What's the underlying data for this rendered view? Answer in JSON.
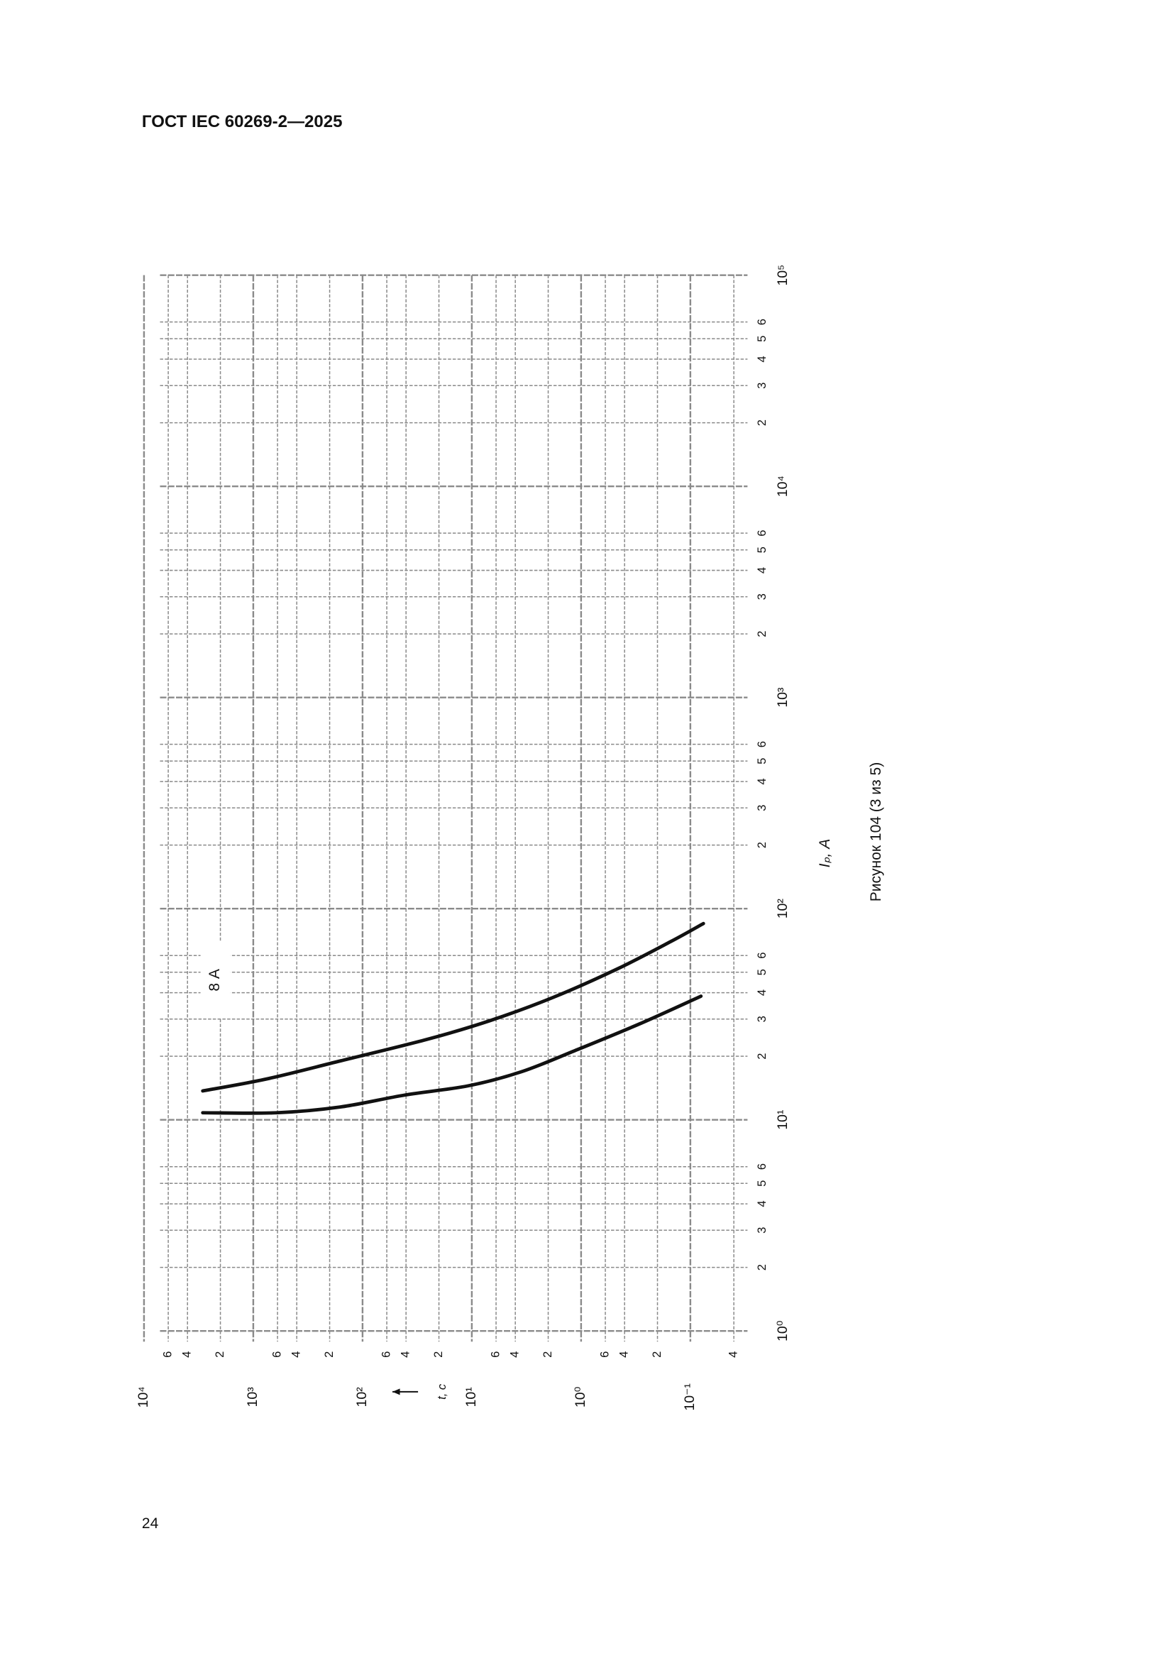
{
  "header": {
    "title": "ГОСТ IEC 60269-2—2025"
  },
  "page_number": "24",
  "caption": "Рисунок 104 (3 из 5)",
  "chart_data": {
    "type": "line",
    "x_label": "Iₚ, А",
    "y_label": "t, с",
    "annotation": "8 А",
    "log_x": true,
    "log_y": true,
    "grid": true,
    "xlim": [
      1,
      100000
    ],
    "ylim": [
      0.03,
      10000
    ],
    "xticks": [
      {
        "value": 1,
        "label": "10⁰"
      },
      2,
      3,
      4,
      5,
      6,
      {
        "value": 10,
        "label": "10¹"
      },
      {
        "value": 20,
        "label": "2"
      },
      {
        "value": 30,
        "label": "3"
      },
      {
        "value": 40,
        "label": "4"
      },
      {
        "value": 50,
        "label": "5"
      },
      {
        "value": 60,
        "label": "6"
      },
      {
        "value": 100,
        "label": "10²"
      },
      {
        "value": 200,
        "label": "2"
      },
      {
        "value": 300,
        "label": "3"
      },
      {
        "value": 400,
        "label": "4"
      },
      {
        "value": 500,
        "label": "5"
      },
      {
        "value": 600,
        "label": "6"
      },
      {
        "value": 1000,
        "label": "10³"
      },
      {
        "value": 2000,
        "label": "2"
      },
      {
        "value": 3000,
        "label": "3"
      },
      {
        "value": 4000,
        "label": "4"
      },
      {
        "value": 5000,
        "label": "5"
      },
      {
        "value": 6000,
        "label": "6"
      },
      {
        "value": 10000,
        "label": "10⁴"
      },
      {
        "value": 20000,
        "label": "2"
      },
      {
        "value": 30000,
        "label": "3"
      },
      {
        "value": 40000,
        "label": "4"
      },
      {
        "value": 50000,
        "label": "5"
      },
      {
        "value": 60000,
        "label": "6"
      },
      {
        "value": 100000,
        "label": "10⁵"
      }
    ],
    "yticks": [
      {
        "value": 0.04,
        "label": "4"
      },
      {
        "value": 0.1,
        "label": "10⁻¹"
      },
      {
        "value": 0.2,
        "label": "2"
      },
      {
        "value": 0.4,
        "label": "4"
      },
      {
        "value": 0.6,
        "label": "6"
      },
      {
        "value": 1,
        "label": "10⁰"
      },
      2,
      4,
      6,
      {
        "value": 10,
        "label": "10¹"
      },
      {
        "value": 20,
        "label": "2"
      },
      {
        "value": 40,
        "label": "4"
      },
      {
        "value": 60,
        "label": "6"
      },
      {
        "value": 100,
        "label": "10²"
      },
      {
        "value": 200,
        "label": "2"
      },
      {
        "value": 400,
        "label": "4"
      },
      {
        "value": 600,
        "label": "6"
      },
      {
        "value": 1000,
        "label": "10³"
      },
      {
        "value": 2000,
        "label": "2"
      },
      {
        "value": 4000,
        "label": "4"
      },
      {
        "value": 6000,
        "label": "6"
      },
      {
        "value": 10000,
        "label": "10⁴"
      }
    ],
    "series": [
      {
        "color": "#111111",
        "x": [
          13.7,
          15.6,
          19,
          24,
          29.5,
          38,
          52,
          70,
          85
        ],
        "values": [
          2900,
          760,
          160,
          26,
          6.8,
          1.8,
          0.46,
          0.15,
          0.076
        ]
      },
      {
        "color": "#111111",
        "x": [
          10.8,
          10.8,
          11.5,
          13.1,
          14.5,
          16.9,
          21.3,
          28.5,
          38.5
        ],
        "values": [
          2900,
          610,
          160,
          41,
          10.7,
          3.5,
          1.13,
          0.29,
          0.08
        ]
      }
    ]
  }
}
